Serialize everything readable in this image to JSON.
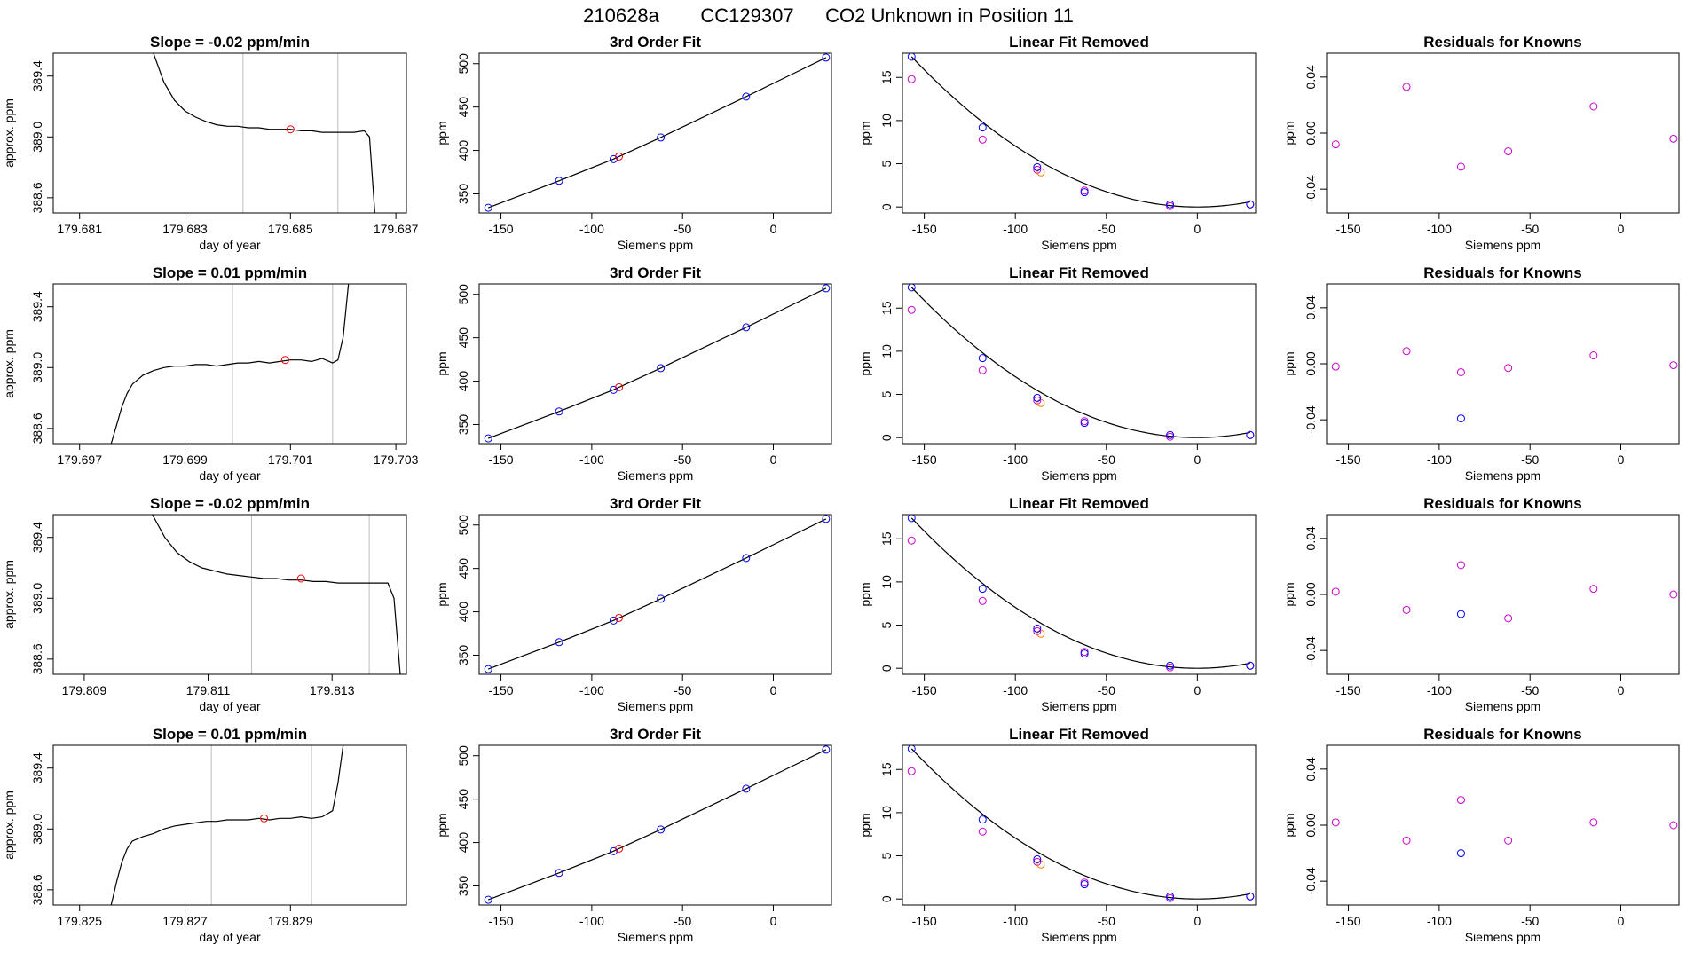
{
  "figure": {
    "run_label": "210628a",
    "tank_label": "CC129307",
    "description": "CO2 Unknown in Position  11"
  },
  "colors": {
    "curve": "#000000",
    "marker_blue": "#0000ff",
    "marker_magenta": "#cc00cc",
    "marker_red": "#ff0000",
    "marker_orange": "#ff8000",
    "vline": "#bdbdbd",
    "frame": "#000000"
  },
  "chart_data": [
    {
      "panel": "drift",
      "row": 1,
      "type": "line",
      "title": "Slope =  -0.02  ppm/min",
      "xlabel": "day of year",
      "ylabel": "approx. ppm",
      "xlim": [
        179.6805,
        179.6872
      ],
      "ylim": [
        388.5,
        389.55
      ],
      "xticks": [
        179.681,
        179.683,
        179.685,
        179.687
      ],
      "yticks": [
        388.6,
        389.0,
        389.4
      ],
      "vlines": [
        179.6841,
        179.6859
      ],
      "x": [
        179.6824,
        179.6826,
        179.6828,
        179.683,
        179.6832,
        179.6834,
        179.6836,
        179.6838,
        179.684,
        179.6842,
        179.6844,
        179.6846,
        179.6848,
        179.685,
        179.6852,
        179.6854,
        179.6856,
        179.6858,
        179.686,
        179.6862,
        179.6864,
        179.6865,
        179.6866
      ],
      "y": [
        389.55,
        389.36,
        389.24,
        389.17,
        389.13,
        389.1,
        389.08,
        389.07,
        389.07,
        389.06,
        389.06,
        389.05,
        389.05,
        389.05,
        389.04,
        389.04,
        389.03,
        389.03,
        389.03,
        389.03,
        389.04,
        389.0,
        388.5
      ],
      "marker": {
        "x": 179.685,
        "y": 389.05
      }
    },
    {
      "panel": "fit",
      "row": 1,
      "type": "line",
      "title": "3rd Order Fit",
      "xlabel": "Siemens ppm",
      "ylabel": "ppm",
      "xlim": [
        -162,
        32
      ],
      "ylim": [
        328,
        512
      ],
      "xticks": [
        -150,
        -100,
        -50,
        0
      ],
      "yticks": [
        350,
        400,
        450,
        500
      ],
      "points": [
        {
          "x": -157,
          "y": 334
        },
        {
          "x": -118,
          "y": 365
        },
        {
          "x": -88,
          "y": 390
        },
        {
          "x": -85,
          "y": 393
        },
        {
          "x": -62,
          "y": 415
        },
        {
          "x": -15,
          "y": 462
        },
        {
          "x": 29,
          "y": 507
        }
      ]
    },
    {
      "panel": "linfit",
      "row": 1,
      "type": "scatter",
      "title": "Linear Fit Removed",
      "xlabel": "Siemens ppm",
      "ylabel": "ppm",
      "xlim": [
        -162,
        32
      ],
      "ylim": [
        -0.7,
        17.8
      ],
      "xticks": [
        -150,
        -100,
        -50,
        0
      ],
      "yticks": [
        0,
        5,
        10,
        15
      ],
      "curve": {
        "x0": -157,
        "y0": 17.4,
        "x1": 0,
        "y1": 0
      },
      "blue": [
        {
          "x": -157,
          "y": 17.4
        },
        {
          "x": -118,
          "y": 9.2
        },
        {
          "x": -88,
          "y": 4.6
        },
        {
          "x": -62,
          "y": 1.7
        },
        {
          "x": -15,
          "y": 0.3
        },
        {
          "x": 29,
          "y": 0.3
        }
      ],
      "magenta": [
        {
          "x": -157,
          "y": 14.8
        },
        {
          "x": -118,
          "y": 7.8
        },
        {
          "x": -88,
          "y": 4.3
        },
        {
          "x": -62,
          "y": 1.9
        },
        {
          "x": -15,
          "y": 0.1
        },
        {
          "x": 29,
          "y": 0.3
        }
      ],
      "orange": [
        {
          "x": -86,
          "y": 4.0
        }
      ]
    },
    {
      "panel": "resid",
      "row": 1,
      "type": "scatter",
      "title": "Residuals for Knowns",
      "xlabel": "Siemens ppm",
      "ylabel": "ppm",
      "xlim": [
        -162,
        32
      ],
      "ylim": [
        -0.057,
        0.057
      ],
      "xticks": [
        -150,
        -100,
        -50,
        0
      ],
      "yticks": [
        -0.04,
        0.0,
        0.04
      ],
      "blue": [],
      "magenta": [
        {
          "x": -157,
          "y": -0.008
        },
        {
          "x": -118,
          "y": 0.033
        },
        {
          "x": -88,
          "y": -0.024
        },
        {
          "x": -62,
          "y": -0.013
        },
        {
          "x": -15,
          "y": 0.019
        },
        {
          "x": 29,
          "y": -0.004
        }
      ]
    },
    {
      "panel": "drift",
      "row": 2,
      "type": "line",
      "title": "Slope =  0.01  ppm/min",
      "xlabel": "day of year",
      "ylabel": "approx. ppm",
      "xlim": [
        179.6965,
        179.7032
      ],
      "ylim": [
        388.5,
        389.55
      ],
      "xticks": [
        179.697,
        179.699,
        179.701,
        179.703
      ],
      "yticks": [
        388.6,
        389.0,
        389.4
      ],
      "vlines": [
        179.6999,
        179.7018
      ],
      "x": [
        179.6976,
        179.6977,
        179.6978,
        179.6979,
        179.698,
        179.6982,
        179.6984,
        179.6986,
        179.6988,
        179.699,
        179.6992,
        179.6994,
        179.6996,
        179.6998,
        179.7,
        179.7002,
        179.7004,
        179.7006,
        179.7008,
        179.701,
        179.7012,
        179.7014,
        179.7016,
        179.7018,
        179.7019,
        179.702,
        179.7021
      ],
      "y": [
        388.5,
        388.62,
        388.74,
        388.83,
        388.89,
        388.95,
        388.98,
        389.0,
        389.01,
        389.01,
        389.02,
        389.02,
        389.01,
        389.02,
        389.03,
        389.03,
        389.04,
        389.03,
        389.04,
        389.05,
        389.05,
        389.04,
        389.06,
        389.03,
        389.05,
        389.2,
        389.55
      ],
      "marker": {
        "x": 179.7009,
        "y": 389.05
      }
    },
    {
      "panel": "fit",
      "row": 2,
      "type": "line",
      "title": "3rd Order Fit",
      "xlabel": "Siemens ppm",
      "ylabel": "ppm",
      "xlim": [
        -162,
        32
      ],
      "ylim": [
        328,
        512
      ],
      "xticks": [
        -150,
        -100,
        -50,
        0
      ],
      "yticks": [
        350,
        400,
        450,
        500
      ],
      "points": [
        {
          "x": -157,
          "y": 334
        },
        {
          "x": -118,
          "y": 365
        },
        {
          "x": -88,
          "y": 390
        },
        {
          "x": -85,
          "y": 393
        },
        {
          "x": -62,
          "y": 415
        },
        {
          "x": -15,
          "y": 462
        },
        {
          "x": 29,
          "y": 507
        }
      ]
    },
    {
      "panel": "linfit",
      "row": 2,
      "type": "scatter",
      "title": "Linear Fit Removed",
      "xlabel": "Siemens ppm",
      "ylabel": "ppm",
      "xlim": [
        -162,
        32
      ],
      "ylim": [
        -0.7,
        17.8
      ],
      "xticks": [
        -150,
        -100,
        -50,
        0
      ],
      "yticks": [
        0,
        5,
        10,
        15
      ],
      "curve": {
        "x0": -157,
        "y0": 17.4,
        "x1": 0,
        "y1": 0
      },
      "blue": [
        {
          "x": -157,
          "y": 17.4
        },
        {
          "x": -118,
          "y": 9.2
        },
        {
          "x": -88,
          "y": 4.6
        },
        {
          "x": -62,
          "y": 1.7
        },
        {
          "x": -15,
          "y": 0.3
        },
        {
          "x": 29,
          "y": 0.3
        }
      ],
      "magenta": [
        {
          "x": -157,
          "y": 14.8
        },
        {
          "x": -118,
          "y": 7.8
        },
        {
          "x": -88,
          "y": 4.3
        },
        {
          "x": -62,
          "y": 1.9
        },
        {
          "x": -15,
          "y": 0.1
        },
        {
          "x": 29,
          "y": 0.3
        }
      ],
      "orange": [
        {
          "x": -86,
          "y": 4.0
        }
      ]
    },
    {
      "panel": "resid",
      "row": 2,
      "type": "scatter",
      "title": "Residuals for Knowns",
      "xlabel": "Siemens ppm",
      "ylabel": "ppm",
      "xlim": [
        -162,
        32
      ],
      "ylim": [
        -0.057,
        0.057
      ],
      "xticks": [
        -150,
        -100,
        -50,
        0
      ],
      "yticks": [
        -0.04,
        0.0,
        0.04
      ],
      "blue": [
        {
          "x": -88,
          "y": -0.039
        }
      ],
      "magenta": [
        {
          "x": -157,
          "y": -0.002
        },
        {
          "x": -118,
          "y": 0.009
        },
        {
          "x": -88,
          "y": -0.006
        },
        {
          "x": -62,
          "y": -0.003
        },
        {
          "x": -15,
          "y": 0.006
        },
        {
          "x": 29,
          "y": -0.001
        }
      ]
    },
    {
      "panel": "drift",
      "row": 3,
      "type": "line",
      "title": "Slope =  -0.02  ppm/min",
      "xlabel": "day of year",
      "ylabel": "approx. ppm",
      "xlim": [
        179.8085,
        179.8142
      ],
      "ylim": [
        388.5,
        389.55
      ],
      "xticks": [
        179.809,
        179.811,
        179.813
      ],
      "yticks": [
        388.6,
        389.0,
        389.4
      ],
      "vlines": [
        179.8117,
        179.8136
      ],
      "x": [
        179.8101,
        179.8103,
        179.8105,
        179.8107,
        179.8109,
        179.8111,
        179.8113,
        179.8115,
        179.8117,
        179.8119,
        179.8121,
        179.8123,
        179.8125,
        179.8127,
        179.8129,
        179.8131,
        179.8133,
        179.8135,
        179.8137,
        179.8139,
        179.814,
        179.8141
      ],
      "y": [
        389.55,
        389.4,
        389.3,
        389.24,
        389.2,
        389.18,
        389.16,
        389.15,
        389.14,
        389.13,
        389.13,
        389.12,
        389.12,
        389.11,
        389.11,
        389.1,
        389.1,
        389.1,
        389.1,
        389.1,
        389.0,
        388.5
      ],
      "marker": {
        "x": 179.8125,
        "y": 389.13
      }
    },
    {
      "panel": "fit",
      "row": 3,
      "type": "line",
      "title": "3rd Order Fit",
      "xlabel": "Siemens ppm",
      "ylabel": "ppm",
      "xlim": [
        -162,
        32
      ],
      "ylim": [
        328,
        512
      ],
      "xticks": [
        -150,
        -100,
        -50,
        0
      ],
      "yticks": [
        350,
        400,
        450,
        500
      ],
      "points": [
        {
          "x": -157,
          "y": 334
        },
        {
          "x": -118,
          "y": 365
        },
        {
          "x": -88,
          "y": 390
        },
        {
          "x": -85,
          "y": 393
        },
        {
          "x": -62,
          "y": 415
        },
        {
          "x": -15,
          "y": 462
        },
        {
          "x": 29,
          "y": 507
        }
      ]
    },
    {
      "panel": "linfit",
      "row": 3,
      "type": "scatter",
      "title": "Linear Fit Removed",
      "xlabel": "Siemens ppm",
      "ylabel": "ppm",
      "xlim": [
        -162,
        32
      ],
      "ylim": [
        -0.7,
        17.8
      ],
      "xticks": [
        -150,
        -100,
        -50,
        0
      ],
      "yticks": [
        0,
        5,
        10,
        15
      ],
      "curve": {
        "x0": -157,
        "y0": 17.4,
        "x1": 0,
        "y1": 0
      },
      "blue": [
        {
          "x": -157,
          "y": 17.4
        },
        {
          "x": -118,
          "y": 9.2
        },
        {
          "x": -88,
          "y": 4.6
        },
        {
          "x": -62,
          "y": 1.7
        },
        {
          "x": -15,
          "y": 0.3
        },
        {
          "x": 29,
          "y": 0.3
        }
      ],
      "magenta": [
        {
          "x": -157,
          "y": 14.8
        },
        {
          "x": -118,
          "y": 7.8
        },
        {
          "x": -88,
          "y": 4.3
        },
        {
          "x": -62,
          "y": 1.9
        },
        {
          "x": -15,
          "y": 0.1
        },
        {
          "x": 29,
          "y": 0.3
        }
      ],
      "orange": [
        {
          "x": -86,
          "y": 4.0
        }
      ]
    },
    {
      "panel": "resid",
      "row": 3,
      "type": "scatter",
      "title": "Residuals for Knowns",
      "xlabel": "Siemens ppm",
      "ylabel": "ppm",
      "xlim": [
        -162,
        32
      ],
      "ylim": [
        -0.057,
        0.057
      ],
      "xticks": [
        -150,
        -100,
        -50,
        0
      ],
      "yticks": [
        -0.04,
        0.0,
        0.04
      ],
      "blue": [
        {
          "x": -88,
          "y": -0.014
        }
      ],
      "magenta": [
        {
          "x": -157,
          "y": 0.002
        },
        {
          "x": -118,
          "y": -0.011
        },
        {
          "x": -88,
          "y": 0.021
        },
        {
          "x": -62,
          "y": -0.017
        },
        {
          "x": -15,
          "y": 0.004
        },
        {
          "x": 29,
          "y": 0.0
        }
      ]
    },
    {
      "panel": "drift",
      "row": 4,
      "type": "line",
      "title": "Slope =  0.01  ppm/min",
      "xlabel": "day of year",
      "ylabel": "approx. ppm",
      "xlim": [
        179.8245,
        179.8312
      ],
      "ylim": [
        388.5,
        389.55
      ],
      "xticks": [
        179.825,
        179.827,
        179.829
      ],
      "yticks": [
        388.6,
        389.0,
        389.4
      ],
      "vlines": [
        179.8275,
        179.8294
      ],
      "x": [
        179.8256,
        179.8257,
        179.8258,
        179.8259,
        179.826,
        179.8262,
        179.8264,
        179.8266,
        179.8268,
        179.827,
        179.8272,
        179.8274,
        179.8276,
        179.8278,
        179.828,
        179.8282,
        179.8284,
        179.8286,
        179.8288,
        179.829,
        179.8292,
        179.8294,
        179.8296,
        179.8298,
        179.8299,
        179.83
      ],
      "y": [
        388.5,
        388.65,
        388.78,
        388.87,
        388.92,
        388.95,
        388.97,
        389.0,
        389.02,
        389.03,
        389.04,
        389.05,
        389.05,
        389.06,
        389.06,
        389.06,
        389.07,
        389.06,
        389.07,
        389.07,
        389.08,
        389.07,
        389.08,
        389.12,
        389.3,
        389.55
      ],
      "marker": {
        "x": 179.8285,
        "y": 389.07
      }
    },
    {
      "panel": "fit",
      "row": 4,
      "type": "line",
      "title": "3rd Order Fit",
      "xlabel": "Siemens ppm",
      "ylabel": "ppm",
      "xlim": [
        -162,
        32
      ],
      "ylim": [
        328,
        512
      ],
      "xticks": [
        -150,
        -100,
        -50,
        0
      ],
      "yticks": [
        350,
        400,
        450,
        500
      ],
      "points": [
        {
          "x": -157,
          "y": 334
        },
        {
          "x": -118,
          "y": 365
        },
        {
          "x": -88,
          "y": 390
        },
        {
          "x": -85,
          "y": 393
        },
        {
          "x": -62,
          "y": 415
        },
        {
          "x": -15,
          "y": 462
        },
        {
          "x": 29,
          "y": 507
        }
      ]
    },
    {
      "panel": "linfit",
      "row": 4,
      "type": "scatter",
      "title": "Linear Fit Removed",
      "xlabel": "Siemens ppm",
      "ylabel": "ppm",
      "xlim": [
        -162,
        32
      ],
      "ylim": [
        -0.7,
        17.8
      ],
      "xticks": [
        -150,
        -100,
        -50,
        0
      ],
      "yticks": [
        0,
        5,
        10,
        15
      ],
      "curve": {
        "x0": -157,
        "y0": 17.4,
        "x1": 0,
        "y1": 0
      },
      "blue": [
        {
          "x": -157,
          "y": 17.4
        },
        {
          "x": -118,
          "y": 9.2
        },
        {
          "x": -88,
          "y": 4.6
        },
        {
          "x": -62,
          "y": 1.7
        },
        {
          "x": -15,
          "y": 0.3
        },
        {
          "x": 29,
          "y": 0.3
        }
      ],
      "magenta": [
        {
          "x": -157,
          "y": 14.8
        },
        {
          "x": -118,
          "y": 7.8
        },
        {
          "x": -88,
          "y": 4.3
        },
        {
          "x": -62,
          "y": 1.9
        },
        {
          "x": -15,
          "y": 0.1
        },
        {
          "x": 29,
          "y": 0.3
        }
      ],
      "orange": [
        {
          "x": -86,
          "y": 4.0
        }
      ]
    },
    {
      "panel": "resid",
      "row": 4,
      "type": "scatter",
      "title": "Residuals for Knowns",
      "xlabel": "Siemens ppm",
      "ylabel": "ppm",
      "xlim": [
        -162,
        32
      ],
      "ylim": [
        -0.057,
        0.057
      ],
      "xticks": [
        -150,
        -100,
        -50,
        0
      ],
      "yticks": [
        -0.04,
        0.0,
        0.04
      ],
      "blue": [
        {
          "x": -88,
          "y": -0.02
        }
      ],
      "magenta": [
        {
          "x": -157,
          "y": 0.002
        },
        {
          "x": -118,
          "y": -0.011
        },
        {
          "x": -88,
          "y": 0.018
        },
        {
          "x": -62,
          "y": -0.011
        },
        {
          "x": -15,
          "y": 0.002
        },
        {
          "x": 29,
          "y": 0.0
        }
      ]
    }
  ]
}
